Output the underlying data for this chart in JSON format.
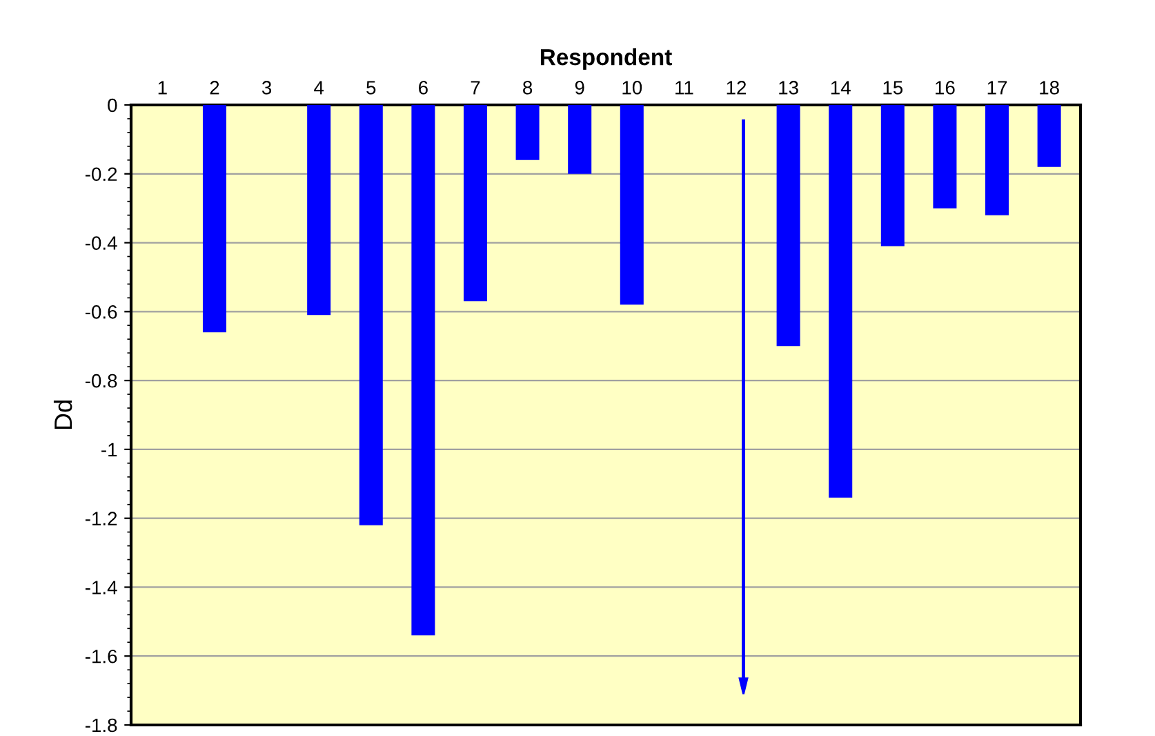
{
  "chart_data": {
    "type": "bar",
    "xlabel": "Respondent",
    "ylabel": "Dd",
    "categories": [
      "1",
      "2",
      "3",
      "4",
      "5",
      "6",
      "7",
      "8",
      "9",
      "10",
      "11",
      "12",
      "13",
      "14",
      "15",
      "16",
      "17",
      "18"
    ],
    "series": [
      {
        "color": "#0000ff",
        "values": [
          0,
          -0.66,
          0,
          -0.61,
          -1.22,
          -1.54,
          -0.57,
          -0.16,
          -0.2,
          -0.58,
          0,
          0,
          -0.7,
          -1.14,
          -0.41,
          -0.3,
          -0.32,
          -0.18
        ]
      }
    ],
    "ylim": [
      -1.8,
      0
    ],
    "yticks": [
      0,
      {
        "value": -0.2,
        "label": "-0.2"
      },
      {
        "value": -0.4,
        "label": "-0.4"
      },
      {
        "value": -0.6,
        "label": "-0.6"
      },
      {
        "value": -0.8,
        "label": "-0.8"
      },
      {
        "value": -1,
        "label": "-1"
      },
      {
        "value": -1.2,
        "label": "-1.2"
      },
      {
        "value": -1.4,
        "label": "-1.4"
      },
      {
        "value": -1.6,
        "label": "-1.6"
      },
      {
        "value": -1.8,
        "label": "-1.8"
      }
    ],
    "grid": "y",
    "legend": false
  }
}
